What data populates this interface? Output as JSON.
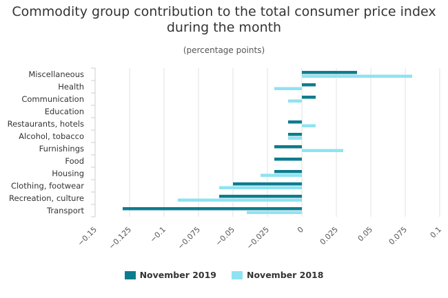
{
  "chart_data": {
    "type": "bar",
    "orientation": "horizontal",
    "title": "Commodity group contribution to the total consumer price index during the month",
    "subtitle": "(percentage points)",
    "categories": [
      "Miscellaneous",
      "Health",
      "Communication",
      "Education",
      "Restaurants, hotels",
      "Alcohol, tobacco",
      "Furnishings",
      "Food",
      "Housing",
      "Clothing, footwear",
      "Recreation, culture",
      "Transport"
    ],
    "series": [
      {
        "name": "November 2019",
        "color": "#0e7c8e",
        "values": [
          0.04,
          0.01,
          0.01,
          0,
          -0.01,
          -0.01,
          -0.02,
          -0.02,
          -0.02,
          -0.05,
          -0.06,
          -0.13
        ]
      },
      {
        "name": "November 2018",
        "color": "#8fe3f1",
        "values": [
          0.08,
          -0.02,
          -0.01,
          0,
          0.01,
          -0.01,
          0.03,
          0,
          -0.03,
          -0.06,
          -0.09,
          -0.04
        ]
      }
    ],
    "xlim": [
      -0.15,
      0.1
    ],
    "xticks": [
      -0.15,
      -0.125,
      -0.1,
      -0.075,
      -0.05,
      -0.025,
      0,
      0.025,
      0.05,
      0.075,
      0.1
    ],
    "xtick_labels": [
      "−0.15",
      "−0.125",
      "−0.1",
      "−0.075",
      "−0.05",
      "−0.025",
      "0",
      "0.025",
      "0.05",
      "0.075",
      "0.1"
    ],
    "grid": "vertical",
    "legend": "bottom-center"
  }
}
